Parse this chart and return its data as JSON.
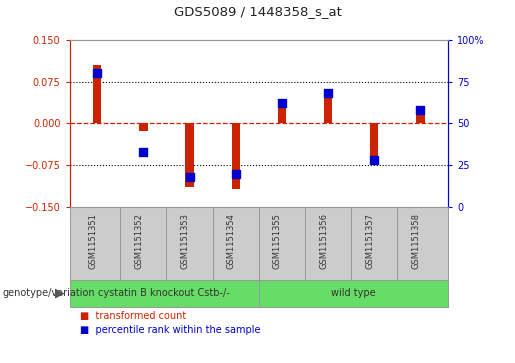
{
  "title": "GDS5089 / 1448358_s_at",
  "samples": [
    "GSM1151351",
    "GSM1151352",
    "GSM1151353",
    "GSM1151354",
    "GSM1151355",
    "GSM1151356",
    "GSM1151357",
    "GSM1151358"
  ],
  "transformed_count": [
    0.105,
    -0.013,
    -0.115,
    -0.118,
    0.027,
    0.048,
    -0.065,
    0.018
  ],
  "percentile_rank": [
    80,
    33,
    18,
    20,
    62,
    68,
    28,
    58
  ],
  "group_boundary": 4,
  "ylim_left": [
    -0.15,
    0.15
  ],
  "ylim_right": [
    0,
    100
  ],
  "yticks_left": [
    -0.15,
    -0.075,
    0,
    0.075,
    0.15
  ],
  "yticks_right": [
    0,
    25,
    50,
    75,
    100
  ],
  "yticklabels_right": [
    "0",
    "25",
    "50",
    "75",
    "100%"
  ],
  "bar_color": "#cc2200",
  "dot_color": "#0000cc",
  "zero_line_color": "#cc2200",
  "grid_color": "#000000",
  "bg_color": "#ffffff",
  "plot_bg": "#ffffff",
  "left_axis_color": "#cc2200",
  "right_axis_color": "#0000cc",
  "legend_bar_label": "transformed count",
  "legend_dot_label": "percentile rank within the sample",
  "genotype_label": "genotype/variation",
  "group1_label": "cystatin B knockout Cstb-/-",
  "group2_label": "wild type",
  "group_color": "#66dd66",
  "sample_bg_color": "#cccccc",
  "bar_width": 0.18,
  "dot_size": 28
}
